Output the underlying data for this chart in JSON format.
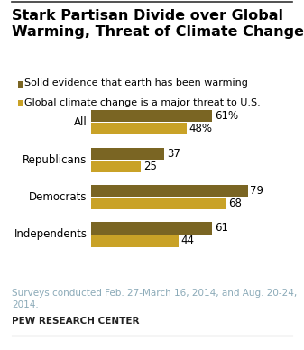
{
  "title": "Stark Partisan Divide over Global\nWarming, Threat of Climate Change",
  "legend_labels": [
    "Solid evidence that earth has been warming",
    "Global climate change is a major threat to U.S."
  ],
  "categories": [
    "All",
    "Republicans",
    "Democrats",
    "Independents"
  ],
  "series1_values": [
    61,
    37,
    79,
    61
  ],
  "series2_values": [
    48,
    25,
    68,
    44
  ],
  "series1_color": "#7a6523",
  "series2_color": "#c9a227",
  "bar_height": 0.32,
  "xlim": [
    0,
    92
  ],
  "footnote": "Surveys conducted Feb. 27-March 16, 2014, and Aug. 20-24,\n2014.",
  "source": "PEW RESEARCH CENTER",
  "footnote_color": "#8baab8",
  "source_color": "#222222",
  "background_color": "#ffffff",
  "title_fontsize": 11.5,
  "label_fontsize": 8.5,
  "value_fontsize": 8.5,
  "legend_fontsize": 8,
  "footnote_fontsize": 7.5,
  "source_fontsize": 7.5
}
